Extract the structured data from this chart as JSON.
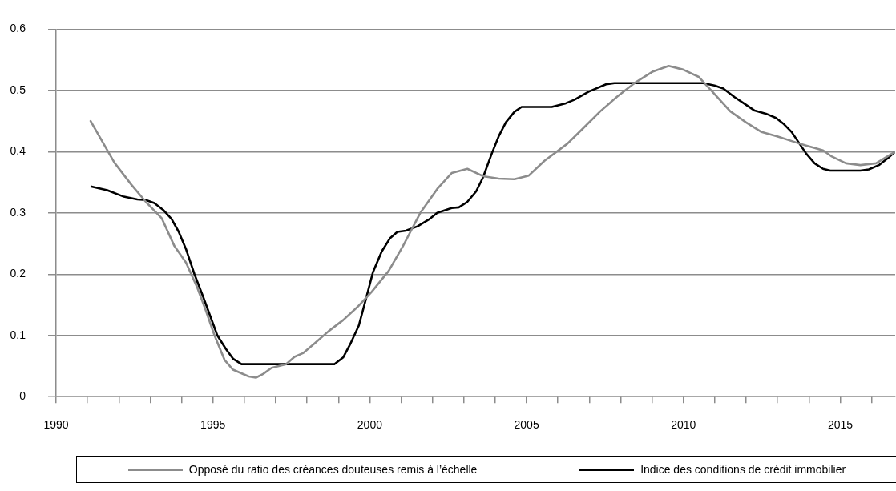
{
  "chart_data": {
    "type": "line",
    "xlim": [
      1990,
      2016.75
    ],
    "xticks": [
      1990,
      {
        "value": 1991,
        "label": null
      },
      {
        "value": 1992,
        "label": null
      },
      {
        "value": 1993,
        "label": null
      },
      {
        "value": 1994,
        "label": null
      },
      1995,
      {
        "value": 1996,
        "label": null
      },
      {
        "value": 1997,
        "label": null
      },
      {
        "value": 1998,
        "label": null
      },
      {
        "value": 1999,
        "label": null
      },
      2000,
      {
        "value": 2001,
        "label": null
      },
      {
        "value": 2002,
        "label": null
      },
      {
        "value": 2003,
        "label": null
      },
      {
        "value": 2004,
        "label": null
      },
      2005,
      {
        "value": 2006,
        "label": null
      },
      {
        "value": 2007,
        "label": null
      },
      {
        "value": 2008,
        "label": null
      },
      {
        "value": 2009,
        "label": null
      },
      2010,
      {
        "value": 2011,
        "label": null
      },
      {
        "value": 2012,
        "label": null
      },
      {
        "value": 2013,
        "label": null
      },
      {
        "value": 2014,
        "label": null
      },
      2015,
      {
        "value": 2016,
        "label": null
      }
    ],
    "ylim": [
      0,
      0.6
    ],
    "yticks": [
      0,
      0.1,
      0.2,
      0.3,
      0.4,
      0.5,
      0.6
    ],
    "grid": "y",
    "legend": "bottom",
    "marker": "none",
    "line_style": "solid",
    "series": [
      {
        "name": "Opposé du ratio des créances douteuses remis à l’échelle",
        "color": "#8c8c8c",
        "x": [
          1991.1,
          1991.86,
          1992.4,
          1992.86,
          1993.37,
          1993.77,
          1994.14,
          1994.5,
          1994.77,
          1995.05,
          1995.37,
          1995.64,
          1996.14,
          1996.37,
          1996.6,
          1996.87,
          1997.33,
          1997.6,
          1997.87,
          1998.24,
          1998.69,
          1999.15,
          1999.6,
          2000.06,
          2000.6,
          2001.06,
          2001.61,
          2002.15,
          2002.61,
          2003.11,
          2003.61,
          2004.11,
          2004.61,
          2005.07,
          2005.57,
          2006.3,
          2006.8,
          2007.35,
          2007.89,
          2008.44,
          2009.03,
          2009.53,
          2009.99,
          2010.49,
          2010.99,
          2011.49,
          2011.99,
          2012.49,
          2012.99,
          2013.59,
          2013.91,
          2014.45,
          2014.73,
          2015.18,
          2015.64,
          2016.14,
          2016.53,
          2016.75
        ],
        "values": [
          0.45,
          0.382,
          0.346,
          0.318,
          0.291,
          0.246,
          0.219,
          0.178,
          0.141,
          0.1,
          0.06,
          0.044,
          0.033,
          0.031,
          0.037,
          0.047,
          0.053,
          0.065,
          0.071,
          0.087,
          0.107,
          0.125,
          0.146,
          0.171,
          0.205,
          0.246,
          0.3,
          0.339,
          0.365,
          0.372,
          0.36,
          0.356,
          0.355,
          0.361,
          0.385,
          0.413,
          0.438,
          0.466,
          0.49,
          0.512,
          0.531,
          0.54,
          0.534,
          0.522,
          0.494,
          0.466,
          0.448,
          0.432,
          0.425,
          0.415,
          0.41,
          0.402,
          0.392,
          0.381,
          0.378,
          0.381,
          0.393,
          0.4
        ]
      },
      {
        "name": "Indice des conditions de crédit immobilier",
        "color": "#000000",
        "x": [
          1991.13,
          1991.63,
          1992.13,
          1992.59,
          1992.86,
          1993.13,
          1993.41,
          1993.68,
          1993.91,
          1994.14,
          1994.41,
          1994.68,
          1994.91,
          1995.14,
          1995.41,
          1995.64,
          1995.91,
          1998.87,
          1999.15,
          1999.37,
          1999.65,
          1999.88,
          2000.1,
          2000.38,
          2000.65,
          2000.88,
          2001.15,
          2001.52,
          2001.88,
          2002.15,
          2002.61,
          2002.84,
          2003.11,
          2003.39,
          2003.61,
          2003.89,
          2004.11,
          2004.34,
          2004.61,
          2004.84,
          2005.8,
          2006.25,
          2006.53,
          2006.98,
          2007.53,
          2007.8,
          2010.63,
          2010.99,
          2011.27,
          2011.63,
          2011.95,
          2012.27,
          2012.63,
          2012.95,
          2013.18,
          2013.45,
          2013.91,
          2014.18,
          2014.45,
          2014.68,
          2015.64,
          2015.91,
          2016.23,
          2016.53,
          2016.75
        ],
        "values": [
          0.343,
          0.337,
          0.327,
          0.322,
          0.321,
          0.316,
          0.305,
          0.29,
          0.269,
          0.241,
          0.2,
          0.164,
          0.132,
          0.1,
          0.078,
          0.062,
          0.053,
          0.053,
          0.064,
          0.085,
          0.116,
          0.16,
          0.203,
          0.237,
          0.259,
          0.269,
          0.271,
          0.278,
          0.289,
          0.3,
          0.308,
          0.309,
          0.318,
          0.335,
          0.358,
          0.397,
          0.425,
          0.448,
          0.465,
          0.473,
          0.473,
          0.479,
          0.485,
          0.498,
          0.51,
          0.512,
          0.512,
          0.508,
          0.503,
          0.489,
          0.478,
          0.467,
          0.462,
          0.455,
          0.446,
          0.432,
          0.397,
          0.381,
          0.372,
          0.369,
          0.369,
          0.371,
          0.378,
          0.39,
          0.4
        ]
      }
    ]
  }
}
